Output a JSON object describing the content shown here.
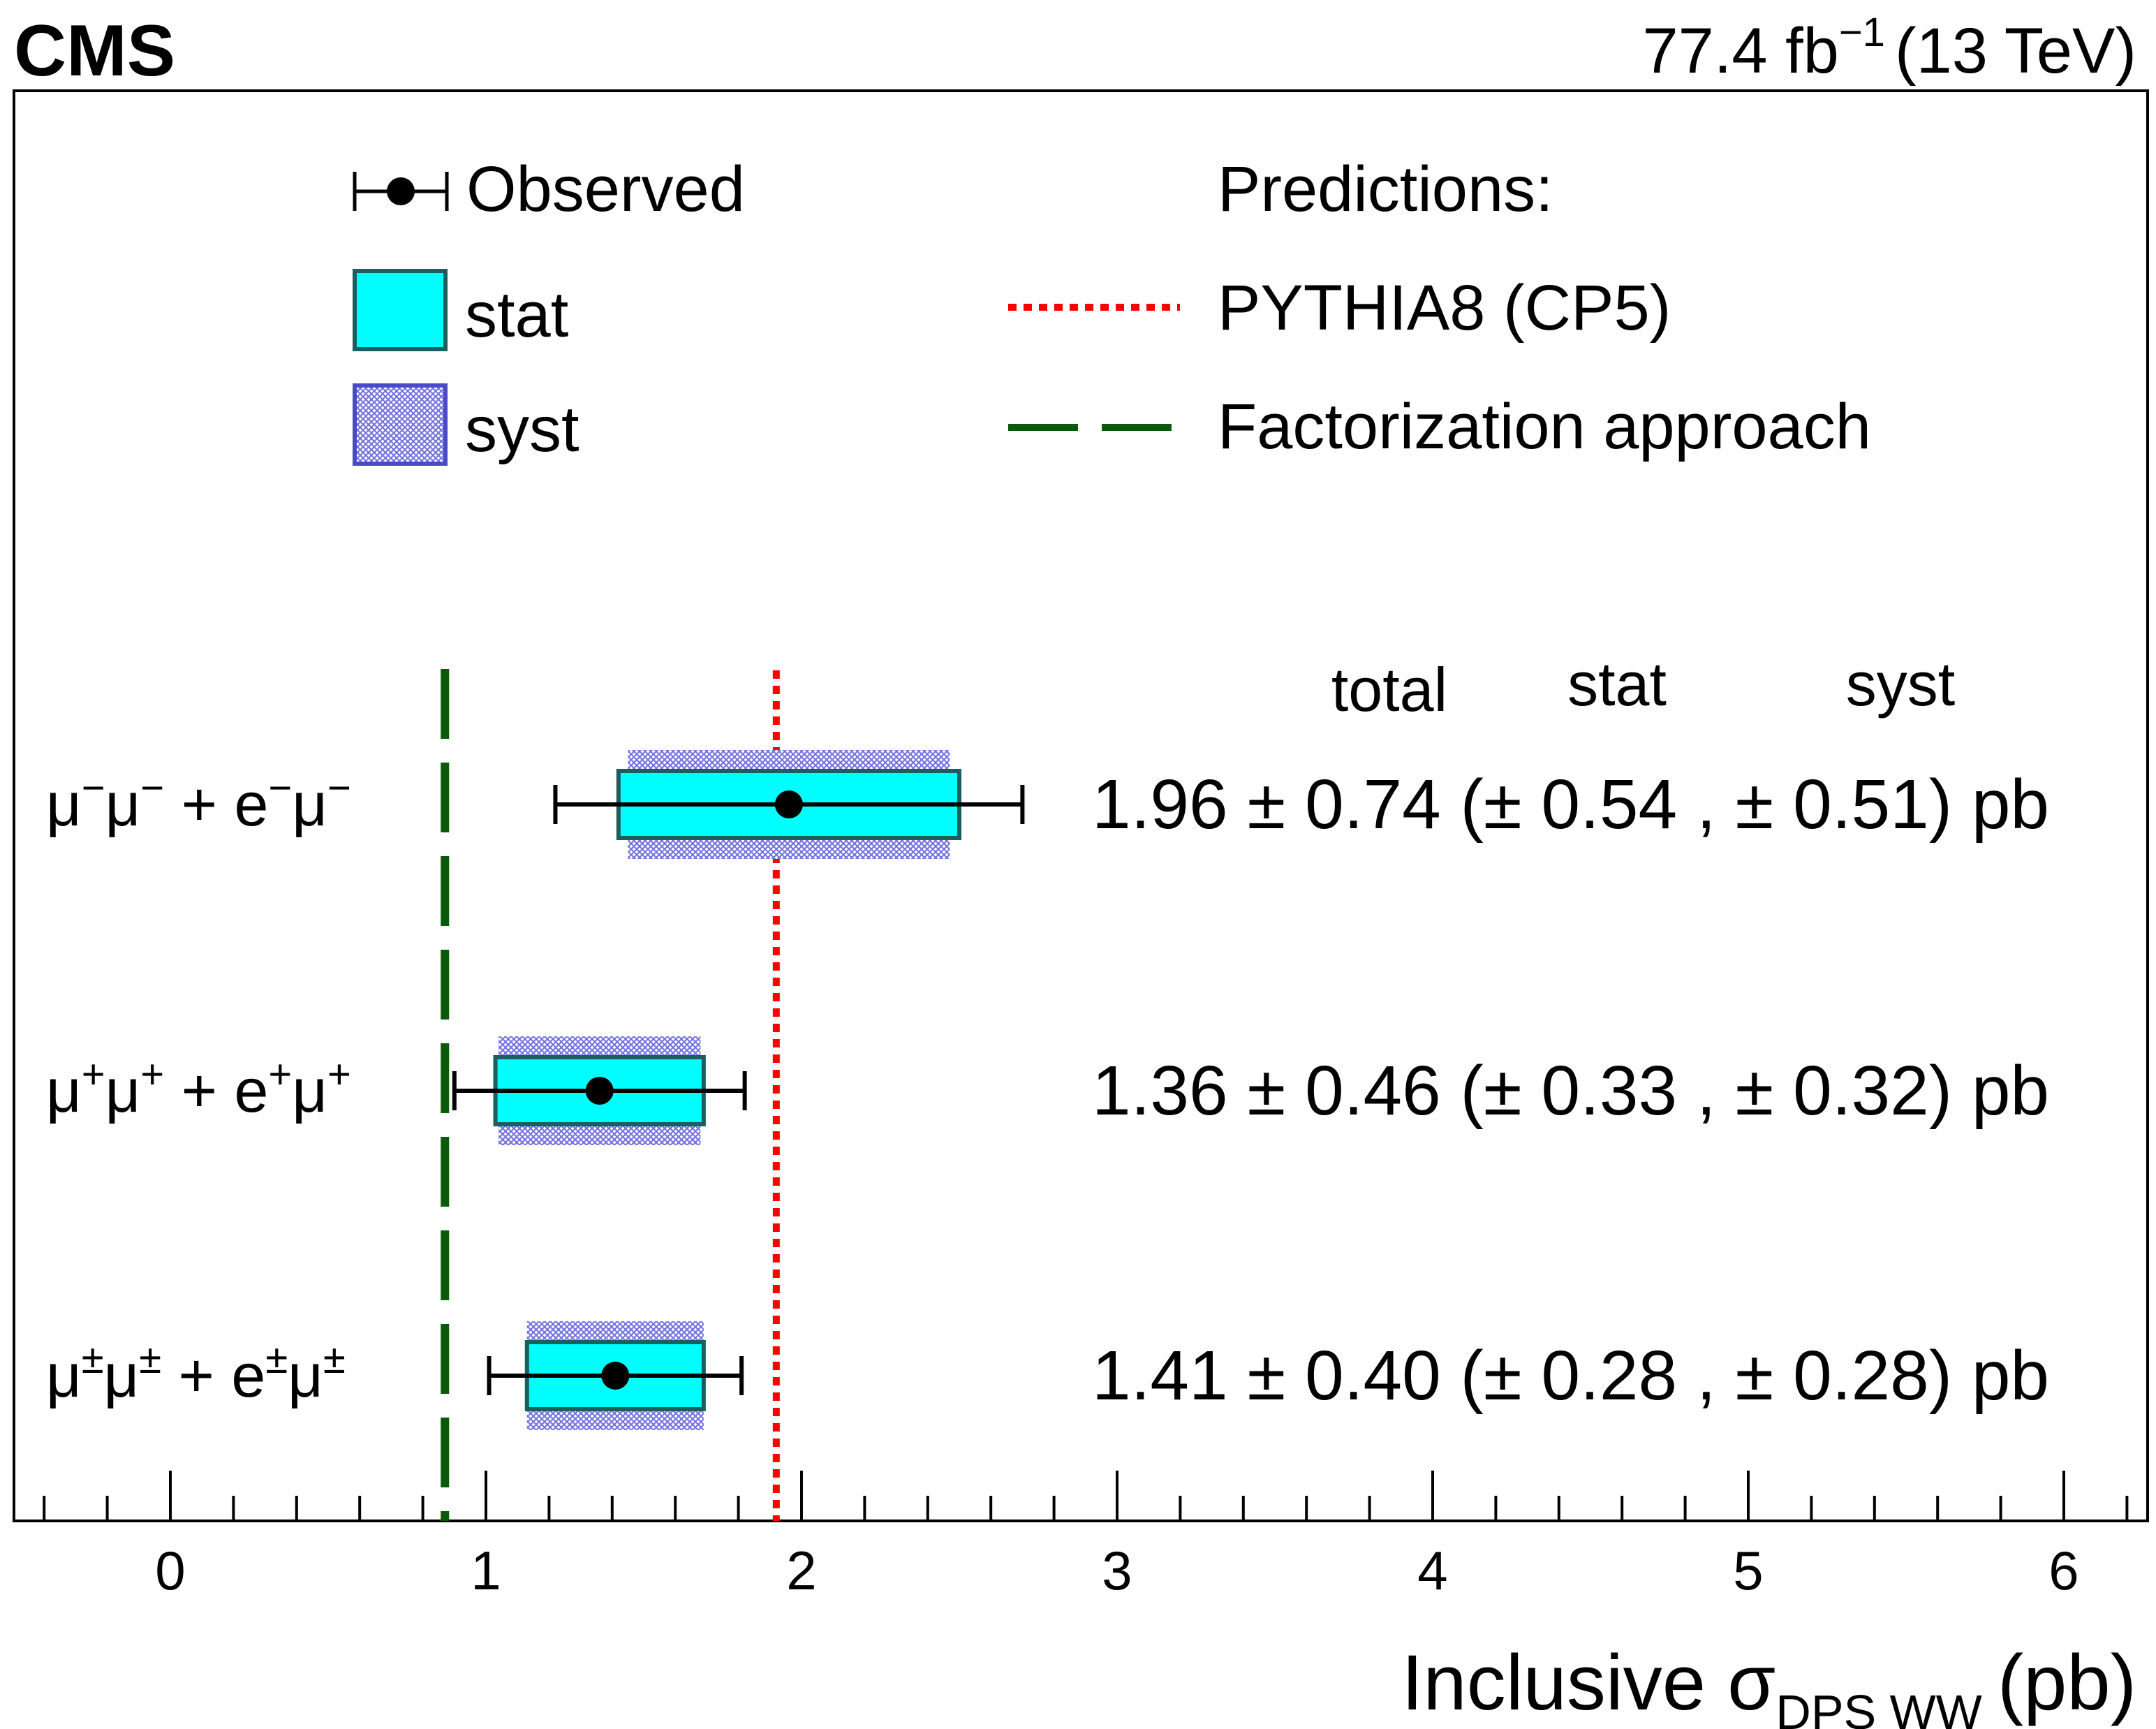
{
  "header": {
    "experiment": "CMS",
    "lumi_value": "77.4 fb",
    "lumi_exp": "−1",
    "energy": "(13 TeV)"
  },
  "legend": {
    "observed": "Observed",
    "stat": "stat",
    "syst": "syst",
    "predictions_title": "Predictions:",
    "pythia": "PYTHIA8 (CP5)",
    "factorization": "Factorization approach"
  },
  "table_header": {
    "total": "total",
    "stat": "stat",
    "syst": "syst"
  },
  "colors": {
    "stat_fill": "#00ffff",
    "stat_edge": "#1a5e5e",
    "syst_fill": "#9a9ae6",
    "syst_edge": "#4a4ac8",
    "pythia_line": "#ff0000",
    "factorization_line": "#0b5a0b"
  },
  "chart_data": {
    "type": "forest",
    "xlabel": "Inclusive σ",
    "xlabel_sub": "DPS WW",
    "xlabel_unit": "(pb)",
    "xlim": [
      -0.5,
      6.25
    ],
    "ticks": [
      0,
      1,
      2,
      3,
      4,
      5,
      6
    ],
    "tick_labels": [
      "0",
      "1",
      "2",
      "3",
      "4",
      "5",
      "6"
    ],
    "minor_tick_step": 0.2,
    "predictions": {
      "pythia": 1.92,
      "factorization": 0.87
    },
    "rows": [
      {
        "label_parts": [
          {
            "t": "μ",
            "sup": "−"
          },
          {
            "t": "μ",
            "sup": "−"
          },
          {
            "t": " + e",
            "sup": "−"
          },
          {
            "t": "μ",
            "sup": "−"
          }
        ],
        "value": 1.96,
        "total": 0.74,
        "stat": 0.54,
        "syst": 0.51,
        "result_text": "1.96 ± 0.74 (± 0.54 , ± 0.51) pb"
      },
      {
        "label_parts": [
          {
            "t": "μ",
            "sup": "+"
          },
          {
            "t": "μ",
            "sup": "+"
          },
          {
            "t": " + e",
            "sup": "+"
          },
          {
            "t": "μ",
            "sup": "+"
          }
        ],
        "value": 1.36,
        "total": 0.46,
        "stat": 0.33,
        "syst": 0.32,
        "result_text": "1.36 ± 0.46 (± 0.33 , ± 0.32) pb"
      },
      {
        "label_parts": [
          {
            "t": "μ",
            "sup": "±"
          },
          {
            "t": "μ",
            "sup": "±"
          },
          {
            "t": " + e",
            "sup": "±"
          },
          {
            "t": "μ",
            "sup": "±"
          }
        ],
        "value": 1.41,
        "total": 0.4,
        "stat": 0.28,
        "syst": 0.28,
        "result_text": "1.41 ± 0.40 (± 0.28 , ± 0.28) pb"
      }
    ]
  }
}
